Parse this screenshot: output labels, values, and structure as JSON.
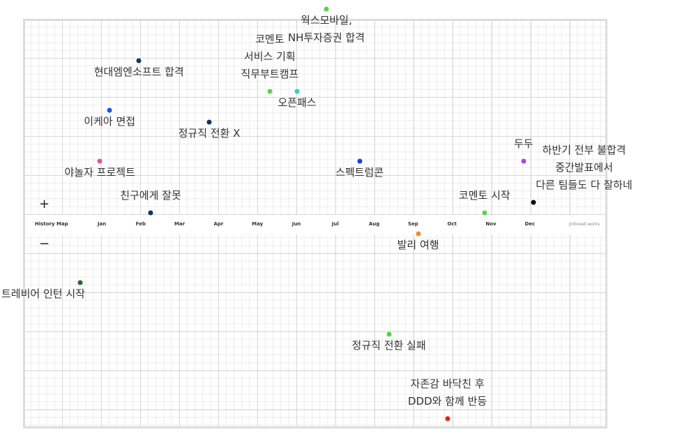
{
  "chart_data": {
    "type": "scatter",
    "title": "History Map",
    "credit": "Jinbread.works",
    "x_axis": {
      "categories": [
        "Jan",
        "Feb",
        "Mar",
        "Apr",
        "May",
        "Jun",
        "Jul",
        "Aug",
        "Sep",
        "Oct",
        "Nov",
        "Dec"
      ],
      "position": "center"
    },
    "y_axis": {
      "positive_marker": "+",
      "negative_marker": "−",
      "range": [
        -10,
        10
      ]
    },
    "grid": true,
    "points": [
      {
        "x": 1.45,
        "y": -3.4,
        "color": "#1e6b2a",
        "label_lines": [
          "트레비어 인턴 시작"
        ],
        "label_dx": -1.0
      },
      {
        "x": 1.95,
        "y": 2.5,
        "color": "#d9569a",
        "label_lines": [
          "야놀자 프로젝트"
        ]
      },
      {
        "x": 2.2,
        "y": 5.0,
        "color": "#1a55e0",
        "label_lines": [
          "이케아 면접"
        ]
      },
      {
        "x": 2.95,
        "y": 7.4,
        "color": "#10365e",
        "label_lines": [
          "현대엠엔소프트 합격"
        ]
      },
      {
        "x": 3.25,
        "y": 0.0,
        "color": "#10365e",
        "label_lines": [
          "친구에게 잘못"
        ],
        "label_above": true
      },
      {
        "x": 4.75,
        "y": 4.4,
        "color": "#10365e",
        "label_lines": [
          "정규직 전환 X"
        ]
      },
      {
        "x": 6.3,
        "y": 5.9,
        "color": "#58d14b",
        "label_lines": [
          "코멘토",
          "서비스 기획",
          "직무부트캠프"
        ],
        "label_above": true
      },
      {
        "x": 7.0,
        "y": 5.9,
        "color": "#2fd1c4",
        "label_lines": [
          "오픈패스"
        ]
      },
      {
        "x": 7.75,
        "y": 9.9,
        "color": "#58d14b",
        "label_lines": [
          "웍스모바일,",
          "NH투자증권 합격"
        ]
      },
      {
        "x": 8.6,
        "y": 2.5,
        "color": "#1a3de0",
        "label_lines": [
          "스펙트럼콘"
        ]
      },
      {
        "x": 9.35,
        "y": -5.9,
        "color": "#58d14b",
        "label_lines": [
          "정규직 전환 실패"
        ]
      },
      {
        "x": 10.1,
        "y": -1.0,
        "color": "#f08a30",
        "label_lines": [
          "발리 여행"
        ]
      },
      {
        "x": 10.85,
        "y": -10.0,
        "color": "#e02020",
        "label_lines": [
          "자존감 바닥친 후",
          "DDD와 함께 반등"
        ],
        "label_above": true
      },
      {
        "x": 11.8,
        "y": 0.0,
        "color": "#58d14b",
        "label_lines": [
          "코멘토 시작"
        ],
        "label_above": true
      },
      {
        "x": 12.8,
        "y": 2.5,
        "color": "#a548e8",
        "label_lines": [
          "두두"
        ],
        "label_above": true
      },
      {
        "x": 13.05,
        "y": 0.5,
        "color": "#000000",
        "label_lines": [
          "하반기 전부 불합격",
          "중간발표에서",
          "다른 팀들도 다 잘하네"
        ],
        "label_above": true,
        "label_dx": 1.3
      }
    ]
  }
}
